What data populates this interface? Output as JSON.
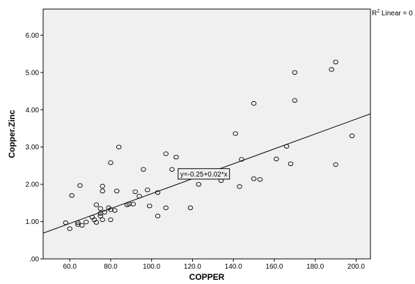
{
  "chart_data": {
    "type": "scatter",
    "xlabel": "COPPER",
    "ylabel": "Copper.Zinc",
    "xlim": [
      47,
      207
    ],
    "ylim": [
      0,
      6.7
    ],
    "x_ticks": [
      60,
      80,
      100,
      120,
      140,
      160,
      180,
      200
    ],
    "x_tick_labels": [
      "60.0",
      "80.0",
      "100.0",
      "120.0",
      "140.0",
      "160.0",
      "180.0",
      "200.0"
    ],
    "y_ticks": [
      0,
      1,
      2,
      3,
      4,
      5,
      6
    ],
    "y_tick_labels": [
      ".00",
      "1.00",
      "2.00",
      "3.00",
      "4.00",
      "5.00",
      "6.00"
    ],
    "grid": false,
    "plot_background": "#f0f0f0",
    "fit_line": {
      "intercept": -0.25,
      "slope": 0.02,
      "label": "y=-0.25+0.02*x",
      "label_x": 114,
      "label_y": 2.27
    },
    "r2_legend": {
      "prefix": "R",
      "superscript": "2",
      "suffix": " Linear = 0"
    },
    "points": [
      {
        "x": 58,
        "y": 0.97
      },
      {
        "x": 60,
        "y": 0.81
      },
      {
        "x": 61,
        "y": 1.7
      },
      {
        "x": 64,
        "y": 0.97
      },
      {
        "x": 64,
        "y": 0.92
      },
      {
        "x": 65,
        "y": 1.97
      },
      {
        "x": 66,
        "y": 0.9
      },
      {
        "x": 68,
        "y": 0.99
      },
      {
        "x": 71,
        "y": 1.12
      },
      {
        "x": 72,
        "y": 1.05
      },
      {
        "x": 73,
        "y": 1.45
      },
      {
        "x": 73,
        "y": 0.98
      },
      {
        "x": 75,
        "y": 1.35
      },
      {
        "x": 75,
        "y": 1.22
      },
      {
        "x": 75,
        "y": 1.15
      },
      {
        "x": 76,
        "y": 1.05
      },
      {
        "x": 76,
        "y": 1.82
      },
      {
        "x": 76,
        "y": 1.95
      },
      {
        "x": 77,
        "y": 1.25
      },
      {
        "x": 79,
        "y": 1.37
      },
      {
        "x": 80,
        "y": 1.05
      },
      {
        "x": 80,
        "y": 1.32
      },
      {
        "x": 80,
        "y": 2.58
      },
      {
        "x": 82,
        "y": 1.3
      },
      {
        "x": 83,
        "y": 1.82
      },
      {
        "x": 84,
        "y": 3.0
      },
      {
        "x": 88,
        "y": 1.45
      },
      {
        "x": 89,
        "y": 1.47
      },
      {
        "x": 91,
        "y": 1.47
      },
      {
        "x": 92,
        "y": 1.8
      },
      {
        "x": 94,
        "y": 1.68
      },
      {
        "x": 96,
        "y": 2.4
      },
      {
        "x": 98,
        "y": 1.85
      },
      {
        "x": 99,
        "y": 1.42
      },
      {
        "x": 103,
        "y": 1.15
      },
      {
        "x": 103,
        "y": 1.78
      },
      {
        "x": 107,
        "y": 2.82
      },
      {
        "x": 107,
        "y": 1.37
      },
      {
        "x": 110,
        "y": 2.4
      },
      {
        "x": 112,
        "y": 2.73
      },
      {
        "x": 119,
        "y": 1.37
      },
      {
        "x": 123,
        "y": 2.0
      },
      {
        "x": 134,
        "y": 2.1
      },
      {
        "x": 141,
        "y": 3.36
      },
      {
        "x": 143,
        "y": 1.94
      },
      {
        "x": 144,
        "y": 2.67
      },
      {
        "x": 150,
        "y": 2.15
      },
      {
        "x": 150,
        "y": 4.17
      },
      {
        "x": 153,
        "y": 2.13
      },
      {
        "x": 161,
        "y": 2.68
      },
      {
        "x": 166,
        "y": 3.02
      },
      {
        "x": 168,
        "y": 2.55
      },
      {
        "x": 170,
        "y": 4.25
      },
      {
        "x": 170,
        "y": 5.0
      },
      {
        "x": 188,
        "y": 5.08
      },
      {
        "x": 190,
        "y": 5.28
      },
      {
        "x": 190,
        "y": 2.53
      },
      {
        "x": 198,
        "y": 3.3
      }
    ]
  }
}
